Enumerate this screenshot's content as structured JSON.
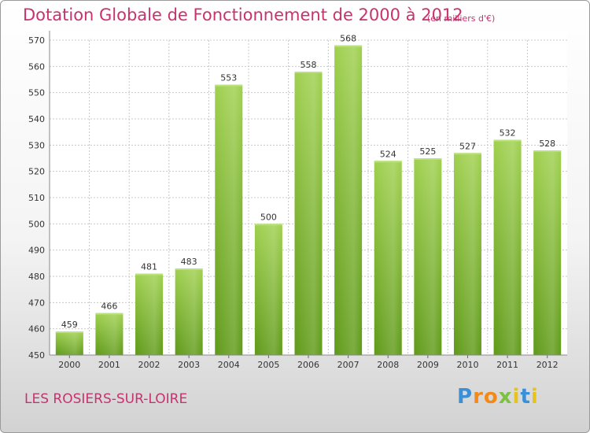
{
  "title": "Dotation Globale de Fonctionnement de 2000 à 2012",
  "subtitle": "(en milliers d'€)",
  "commune": "LES ROSIERS-SUR-LOIRE",
  "logo": {
    "text": "Proxiti"
  },
  "colors": {
    "title": "#c8326e",
    "bar_light": "#9fd04e",
    "bar_dark": "#5f9a18",
    "grid": "#c8c8c8"
  },
  "chart_data": {
    "type": "bar",
    "title": "Dotation Globale de Fonctionnement de 2000 à 2012",
    "subtitle": "(en milliers d'€)",
    "xlabel": "",
    "ylabel": "",
    "categories": [
      "2000",
      "2001",
      "2002",
      "2003",
      "2004",
      "2005",
      "2006",
      "2007",
      "2008",
      "2009",
      "2010",
      "2011",
      "2012"
    ],
    "values": [
      459,
      466,
      481,
      483,
      553,
      500,
      558,
      568,
      524,
      525,
      527,
      532,
      528
    ],
    "ylim": [
      450,
      570
    ],
    "yticks": [
      450,
      460,
      470,
      480,
      490,
      500,
      510,
      520,
      530,
      540,
      550,
      560,
      570
    ],
    "grid": true,
    "legend": "none"
  }
}
